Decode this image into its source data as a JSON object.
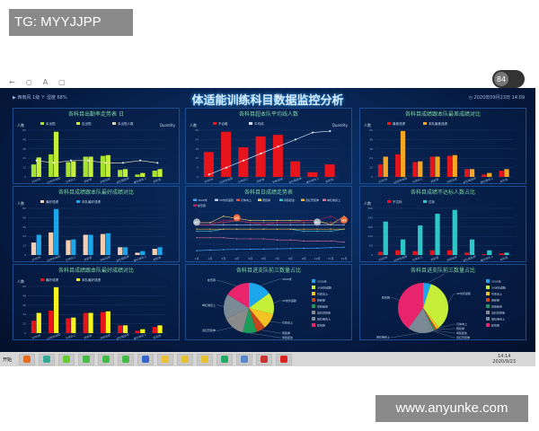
{
  "watermarks": {
    "top_left": "TG: MYYJJPP",
    "bottom_right": "www.anyunke.com"
  },
  "browser": {
    "icons": [
      "back-icon",
      "refresh-icon",
      "font-icon",
      "tab-icon"
    ],
    "glyphs": [
      "←",
      "○",
      "A",
      "▢"
    ],
    "badge": "84"
  },
  "header": {
    "weather": "▶ 西南风 1级   ♈ 湿度 68%",
    "title": "体适能训练科目数据监控分析",
    "datetime": "◷ 2020年09月23日 14:09"
  },
  "colors": {
    "bg": "#061a40",
    "green": "#a6e22e",
    "red": "#e8141c",
    "orange": "#f5a623",
    "peach": "#f3cdb0",
    "blue": "#1aa7ec",
    "teal": "#2ec7c9",
    "yellow": "#f7f31c"
  },
  "categories": [
    "3000米",
    "30米折返跑",
    "引体向上",
    "俯卧撑",
    "仰卧起坐",
    "双杠臂屈伸",
    "单杠卷身上",
    "蛇形跑"
  ],
  "chart_data": [
    {
      "type": "bar",
      "title": "各科目出勤率走势表 日",
      "ylabel": "人数",
      "y2label": "Quantity",
      "ylim": [
        0,
        60
      ],
      "y2lim": [
        0,
        100
      ],
      "series": [
        {
          "name": "未出勤",
          "values": [
            16,
            29,
            19,
            26,
            27,
            9,
            3,
            8
          ],
          "color": "#a6e22e"
        },
        {
          "name": "应出勤",
          "values": [
            25,
            58,
            20,
            26,
            28,
            10,
            5,
            10
          ],
          "color": "#c6ef3a"
        }
      ],
      "line": {
        "name": "未出勤人数",
        "values": [
          35,
          30,
          35,
          35,
          30,
          30,
          35,
          30
        ],
        "color": "#d8d8b0"
      }
    },
    {
      "type": "bar",
      "title": "各科目超本队平均线人数",
      "ylabel": "人数",
      "y2label": "Quantity",
      "ylim": [
        0,
        30
      ],
      "y2lim": [
        0,
        100
      ],
      "series": [
        {
          "name": "不合格",
          "values": [
            16,
            29,
            19,
            26,
            27,
            10,
            3,
            8
          ],
          "color": "#e8141c"
        }
      ],
      "line": {
        "name": "平均线",
        "values": [
          5,
          20,
          35,
          50,
          65,
          80,
          95,
          98
        ],
        "color": "#cfe0ff"
      }
    },
    {
      "type": "bar",
      "title": "各科目成绩跟本队最差成绩对比",
      "ylabel": "人数",
      "ylim": [
        0,
        60
      ],
      "series": [
        {
          "name": "最差成绩",
          "values": [
            16,
            29,
            19,
            26,
            27,
            10,
            3,
            8
          ],
          "color": "#e8141c"
        },
        {
          "name": "本队最差成绩",
          "values": [
            26,
            59,
            20,
            26,
            28,
            10,
            5,
            10
          ],
          "color": "#f5a623"
        }
      ]
    },
    {
      "type": "bar",
      "title": "各科目成绩跟本队最好成绩对比",
      "ylabel": "人数",
      "ylim": [
        0,
        60
      ],
      "series": [
        {
          "name": "最好成绩",
          "values": [
            16,
            29,
            19,
            26,
            27,
            10,
            3,
            8
          ],
          "color": "#f3cdb0"
        },
        {
          "name": "本队最好成绩",
          "values": [
            26,
            59,
            20,
            26,
            28,
            10,
            5,
            10
          ],
          "color": "#1aa7ec"
        }
      ]
    },
    {
      "type": "line",
      "title": "各科目日成绩走势表",
      "ylim": [
        0,
        20
      ],
      "categories": [
        "1月",
        "2月",
        "3月",
        "4月",
        "5月",
        "6月",
        "7月",
        "8月",
        "9月",
        "10月",
        "11月",
        "12月"
      ],
      "series": [
        {
          "name": "3000米",
          "values": [
            2,
            2.3,
            2.5,
            2.6,
            2.7,
            2.8,
            2.9,
            3,
            3.1,
            3.2,
            3.4,
            3.6
          ],
          "color": "#4aa8ff"
        },
        {
          "name": "30米折返跑",
          "values": [
            14,
            14,
            14,
            14,
            14,
            14,
            14,
            14,
            14,
            14,
            14,
            14
          ],
          "color": "#b0c8f0"
        },
        {
          "name": "引体向上",
          "values": [
            15,
            15,
            15,
            16,
            15,
            15,
            15,
            15,
            15,
            15,
            15,
            15
          ],
          "color": "#e05050"
        },
        {
          "name": "俯卧撑",
          "values": [
            15,
            15,
            18,
            17,
            16,
            16,
            16,
            16,
            16,
            16,
            14,
            18
          ],
          "color": "#e6d070"
        },
        {
          "name": "仰卧起坐",
          "values": [
            11,
            11,
            12,
            12,
            12,
            12,
            12,
            12,
            11,
            11,
            11,
            12
          ],
          "color": "#3fc4c4"
        },
        {
          "name": "双杠臂屈伸",
          "values": [
            12,
            12,
            12,
            12,
            12,
            12,
            12,
            12,
            12,
            12,
            12,
            12
          ],
          "color": "#f0b040"
        },
        {
          "name": "单杠卷身上",
          "values": [
            8,
            8,
            8,
            7.5,
            7.5,
            7.5,
            7,
            7,
            6.5,
            6.5,
            6.5,
            6
          ],
          "color": "#d070a0"
        },
        {
          "name": "蛇形跑",
          "values": [
            14,
            14,
            16,
            16,
            15,
            14,
            15,
            15,
            16,
            16,
            18,
            15
          ],
          "color": "#c02060"
        }
      ],
      "markers": [
        {
          "series": "30米折返跑",
          "month": "1月",
          "label": "最高"
        },
        {
          "series": "引体向上",
          "month": "4月",
          "label": "最低"
        },
        {
          "series": "30米折返跑",
          "month": "10月",
          "label": "最高"
        },
        {
          "series": "引体向上",
          "month": "12月",
          "label": "最低"
        }
      ]
    },
    {
      "type": "bar",
      "title": "各科目成绩不达标人数占比",
      "ylabel": "人数",
      "ylim": [
        0,
        300
      ],
      "series": [
        {
          "name": "不达标",
          "values": [
            20,
            30,
            25,
            30,
            30,
            15,
            5,
            10
          ],
          "color": "#e8141c"
        },
        {
          "name": "达标",
          "values": [
            215,
            100,
            190,
            265,
            290,
            100,
            30,
            15
          ],
          "color": "#2ec7c9"
        }
      ]
    },
    {
      "type": "bar",
      "title": "各科目成绩跟本队最好成绩对比",
      "ylabel": "人数",
      "ylim": [
        0,
        60
      ],
      "series": [
        {
          "name": "最好成绩",
          "values": [
            16,
            29,
            19,
            26,
            27,
            10,
            3,
            8
          ],
          "color": "#e8141c"
        },
        {
          "name": "本队最好成绩",
          "values": [
            26,
            59,
            20,
            26,
            28,
            10,
            5,
            10
          ],
          "color": "#f7f31c"
        }
      ]
    },
    {
      "type": "pie",
      "title": "各科目进支队前三数量占比",
      "values": [
        15,
        14,
        10,
        6,
        9,
        14,
        16,
        16
      ],
      "colors": [
        "#1aa7ec",
        "#c6ef3a",
        "#f5c223",
        "#c4461c",
        "#1c9c5a",
        "#8a8a8a",
        "#7c8a96",
        "#e8246c"
      ]
    },
    {
      "type": "pie",
      "title": "各科目进支队前三数量占比",
      "values": [
        5,
        34,
        2,
        1,
        1,
        1,
        16,
        40
      ],
      "colors": [
        "#1aa7ec",
        "#c6ef3a",
        "#f5c223",
        "#c4461c",
        "#1c9c5a",
        "#8a8a8a",
        "#7c8a96",
        "#e8246c"
      ]
    }
  ],
  "taskbar": {
    "start": "开始",
    "clock_time": "14:14",
    "clock_date": "2020/9/23",
    "apps": [
      "#e86a1a",
      "#3a9",
      "#6c3",
      "#4b4",
      "#4b4",
      "#4b4",
      "#36c",
      "#e8c030",
      "#e8c030",
      "#e8c030",
      "#2a6",
      "#58c",
      "#c33",
      "#d22"
    ]
  }
}
